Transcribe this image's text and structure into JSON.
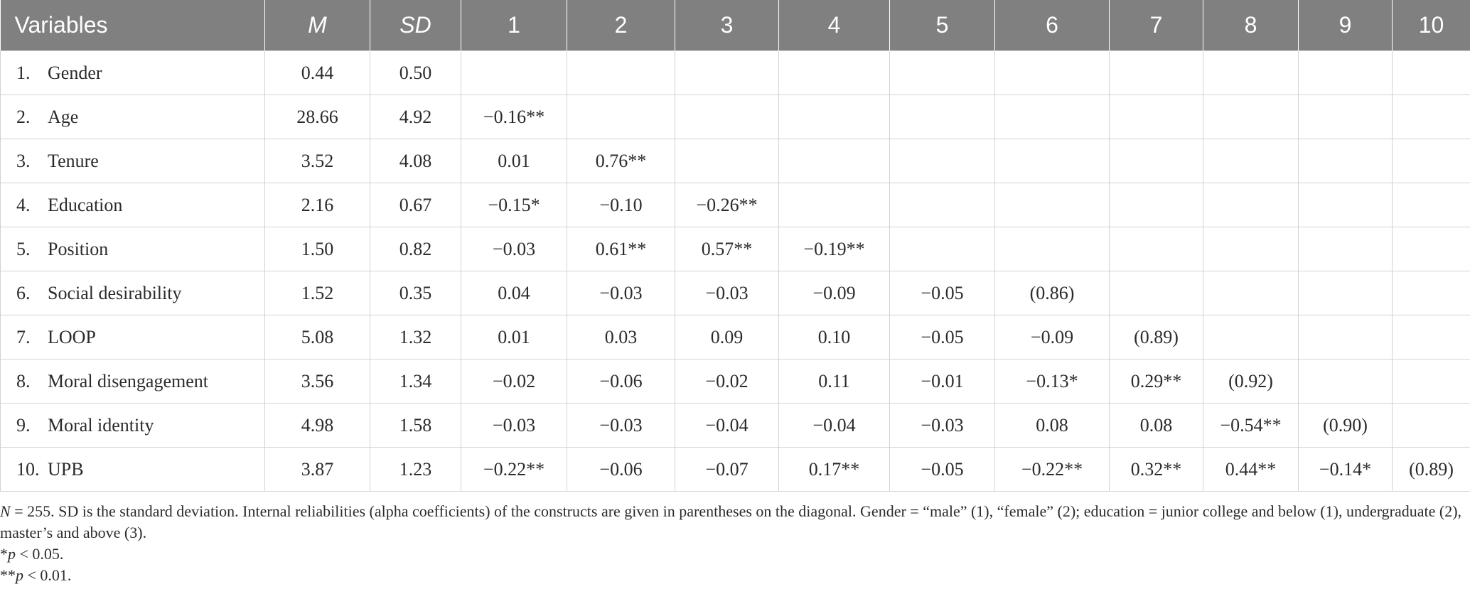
{
  "table": {
    "headers": [
      "Variables",
      "M",
      "SD",
      "1",
      "2",
      "3",
      "4",
      "5",
      "6",
      "7",
      "8",
      "9",
      "10"
    ],
    "rows": [
      {
        "num": "1.",
        "name": "Gender",
        "m": "0.44",
        "sd": "0.50",
        "c": [
          "",
          "",
          "",
          "",
          "",
          "",
          "",
          "",
          "",
          ""
        ]
      },
      {
        "num": "2.",
        "name": "Age",
        "m": "28.66",
        "sd": "4.92",
        "c": [
          "−0.16**",
          "",
          "",
          "",
          "",
          "",
          "",
          "",
          "",
          ""
        ]
      },
      {
        "num": "3.",
        "name": "Tenure",
        "m": "3.52",
        "sd": "4.08",
        "c": [
          "0.01",
          "0.76**",
          "",
          "",
          "",
          "",
          "",
          "",
          "",
          ""
        ]
      },
      {
        "num": "4.",
        "name": "Education",
        "m": "2.16",
        "sd": "0.67",
        "c": [
          "−0.15*",
          "−0.10",
          "−0.26**",
          "",
          "",
          "",
          "",
          "",
          "",
          ""
        ]
      },
      {
        "num": "5.",
        "name": "Position",
        "m": "1.50",
        "sd": "0.82",
        "c": [
          "−0.03",
          "0.61**",
          "0.57**",
          "−0.19**",
          "",
          "",
          "",
          "",
          "",
          ""
        ]
      },
      {
        "num": "6.",
        "name": "Social desirability",
        "m": "1.52",
        "sd": "0.35",
        "c": [
          "0.04",
          "−0.03",
          "−0.03",
          "−0.09",
          "−0.05",
          "(0.86)",
          "",
          "",
          "",
          ""
        ]
      },
      {
        "num": "7.",
        "name": "LOOP",
        "m": "5.08",
        "sd": "1.32",
        "c": [
          "0.01",
          "0.03",
          "0.09",
          "0.10",
          "−0.05",
          "−0.09",
          "(0.89)",
          "",
          "",
          ""
        ]
      },
      {
        "num": "8.",
        "name": "Moral disengagement",
        "m": "3.56",
        "sd": "1.34",
        "c": [
          "−0.02",
          "−0.06",
          "−0.02",
          "0.11",
          "−0.01",
          "−0.13*",
          "0.29**",
          "(0.92)",
          "",
          ""
        ]
      },
      {
        "num": "9.",
        "name": "Moral identity",
        "m": "4.98",
        "sd": "1.58",
        "c": [
          "−0.03",
          "−0.03",
          "−0.04",
          "−0.04",
          "−0.03",
          "0.08",
          "0.08",
          "−0.54**",
          "(0.90)",
          ""
        ]
      },
      {
        "num": "10.",
        "name": "UPB",
        "m": "3.87",
        "sd": "1.23",
        "c": [
          "−0.22**",
          "−0.06",
          "−0.07",
          "0.17**",
          "−0.05",
          "−0.22**",
          "0.32**",
          "0.44**",
          "−0.14*",
          "(0.89)"
        ]
      }
    ]
  },
  "notes": {
    "n_label": "N",
    "line1": " = 255. SD is the standard deviation. Internal reliabilities (alpha coefficients) of the constructs are given in parentheses on the diagonal. Gender = “male” (1), “female” (2); education = junior college and below (1), undergraduate (2), master’s and above (3).",
    "p1_stars": "*",
    "p_letter": "p",
    "p1_value": " < 0.05.",
    "p2_stars": "**",
    "p2_value": " < 0.01."
  }
}
